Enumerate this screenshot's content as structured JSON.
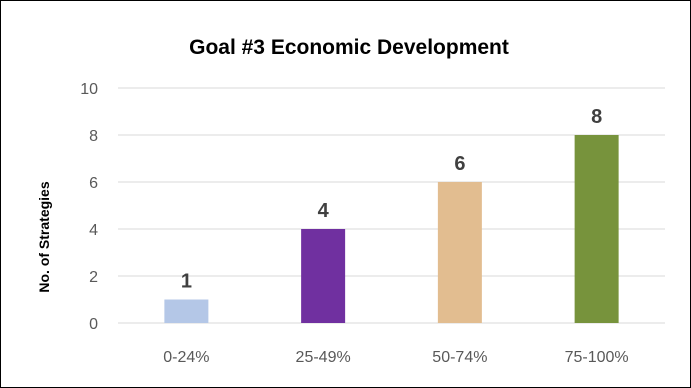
{
  "chart_data": {
    "type": "bar",
    "title": "Goal #3 Economic Development",
    "xlabel": "",
    "ylabel": "No. of Strategies",
    "categories": [
      "0-24%",
      "25-49%",
      "50-74%",
      "75-100%"
    ],
    "values": [
      1,
      4,
      6,
      8
    ],
    "data_labels": [
      "1",
      "4",
      "6",
      "8"
    ],
    "bar_colors": [
      "#b4c7e7",
      "#7030a0",
      "#e2bd90",
      "#77933c"
    ],
    "ylim": [
      0,
      10
    ],
    "yticks": [
      "0",
      "2",
      "4",
      "6",
      "8",
      "10"
    ],
    "grid": true,
    "legend": "none"
  }
}
